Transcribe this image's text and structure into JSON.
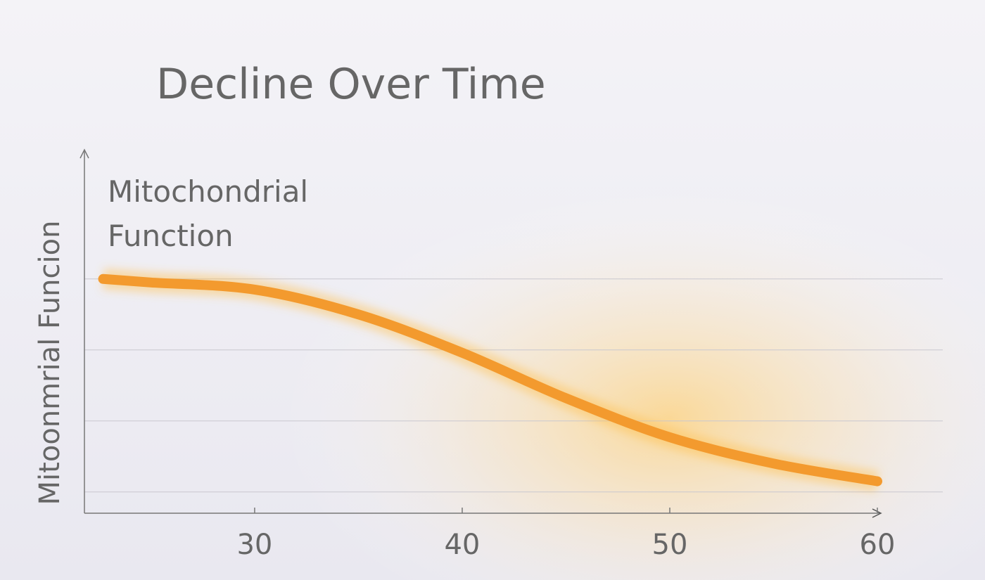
{
  "chart_data": {
    "type": "line",
    "title": "Decline Over Time",
    "annotation": [
      "Mitochondrial",
      "Function"
    ],
    "y_label": "Mitoonmrial Funcion",
    "x": [
      22.7,
      25,
      30,
      35,
      40,
      45,
      50,
      55,
      60
    ],
    "series": [
      {
        "color": "#f39a2e",
        "values": [
          4.0,
          3.95,
          3.85,
          3.5,
          2.96,
          2.32,
          1.77,
          1.4,
          1.15
        ]
      }
    ],
    "xlim": [
      21.8,
      60
    ],
    "xticks": [
      30,
      40,
      50,
      60
    ],
    "ylim": [
      0.7,
      5.8
    ],
    "ygrid": [
      1,
      2,
      3,
      4
    ],
    "grid": true
  }
}
